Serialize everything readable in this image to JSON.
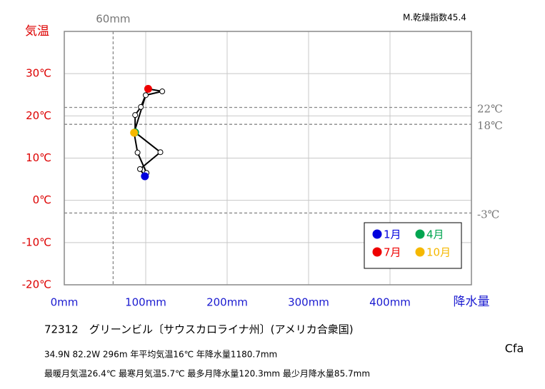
{
  "chart_data": {
    "type": "climograph",
    "title": "M.乾燥指数45.4",
    "ylabel": "気温",
    "xlabel": "降水量",
    "x": [
      99,
      93,
      118,
      87,
      87,
      94,
      103,
      120.3,
      100,
      85.7,
      90,
      101
    ],
    "values": [
      5.7,
      7.4,
      11.4,
      16.1,
      20.2,
      22.1,
      26.4,
      25.8,
      24.9,
      16.0,
      11.3,
      6.5
    ],
    "point_colors": [
      "#0000dd",
      null,
      null,
      "#00a550",
      null,
      null,
      "#ee0000",
      null,
      null,
      "#f5b800",
      null,
      null
    ],
    "line_color": "#000000",
    "legend": [
      {
        "name": "1月",
        "color": "#0000dd"
      },
      {
        "name": "4月",
        "color": "#00a550"
      },
      {
        "name": "7月",
        "color": "#ee0000"
      },
      {
        "name": "10月",
        "color": "#f5b800"
      }
    ],
    "xlim": [
      0,
      500
    ],
    "ylim": [
      -20,
      40
    ],
    "xticks": [
      {
        "value": 0,
        "label": "0mm"
      },
      {
        "value": 100,
        "label": "100mm"
      },
      {
        "value": 200,
        "label": "200mm"
      },
      {
        "value": 300,
        "label": "300mm"
      },
      {
        "value": 400,
        "label": "400mm"
      }
    ],
    "yticks": [
      {
        "value": -20,
        "label": "-20℃"
      },
      {
        "value": -10,
        "label": "-10℃"
      },
      {
        "value": 0,
        "label": "0℃"
      },
      {
        "value": 10,
        "label": "10℃"
      },
      {
        "value": 20,
        "label": "20℃"
      },
      {
        "value": 30,
        "label": "30℃"
      }
    ],
    "grid": true,
    "hlines": [
      {
        "value": 22,
        "label": "22℃"
      },
      {
        "value": 18,
        "label": "18℃"
      },
      {
        "value": -3,
        "label": "-3℃"
      }
    ],
    "vlines": [
      {
        "value": 60,
        "label": "60mm"
      }
    ],
    "station": "72312　グリーンビル〔サウスカロライナ州〕(アメリカ合衆国)",
    "info": [
      "34.9N  82.2W 296m  年平均気温16℃ 年降水量1180.7mm",
      "最暖月気温26.4℃ 最寒月気温5.7℃ 最多月降水量120.3mm 最少月降水量85.7mm"
    ],
    "climate": "Cfa"
  }
}
